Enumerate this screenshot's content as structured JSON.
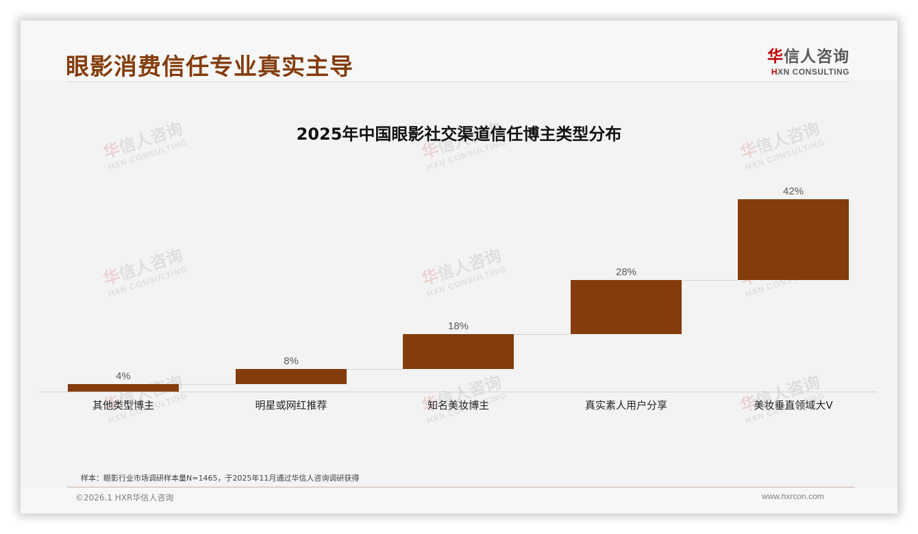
{
  "header": {
    "title": "眼影消费信任专业真实主导",
    "logo": {
      "cn_accent": "华",
      "cn_rest": "信人咨询",
      "en_accent": "H",
      "en_rest": "XN CONSULTING"
    }
  },
  "watermark": {
    "cn_accent": "华",
    "cn_rest": "信人咨询",
    "en": "HXN CONSULTING"
  },
  "chart_data": {
    "type": "bar",
    "subtype": "waterfall",
    "title": "2025年中国眼影社交渠道信任博主类型分布",
    "categories": [
      "其他类型博主",
      "明星或网红推荐",
      "知名美妆博主",
      "真实素人用户分享",
      "美妆垂直领域大V"
    ],
    "values": [
      4,
      8,
      18,
      28,
      42
    ],
    "value_labels": [
      "4%",
      "8%",
      "18%",
      "28%",
      "42%"
    ],
    "unit": "%",
    "xlabel": "",
    "ylabel": "",
    "ylim": [
      0,
      100
    ],
    "grid": false,
    "legend": "none",
    "bar_color": "#843c0c"
  },
  "footer": {
    "note": "样本：眼影行业市场调研样本量N=1465，于2025年11月通过华信人咨询调研获得",
    "copyright": "©2026.1 HXR华信人咨询",
    "website": "www.hxrcon.com"
  },
  "colors": {
    "accent": "#843c0c",
    "logo_red": "#c00000",
    "text_gray": "#595959"
  }
}
